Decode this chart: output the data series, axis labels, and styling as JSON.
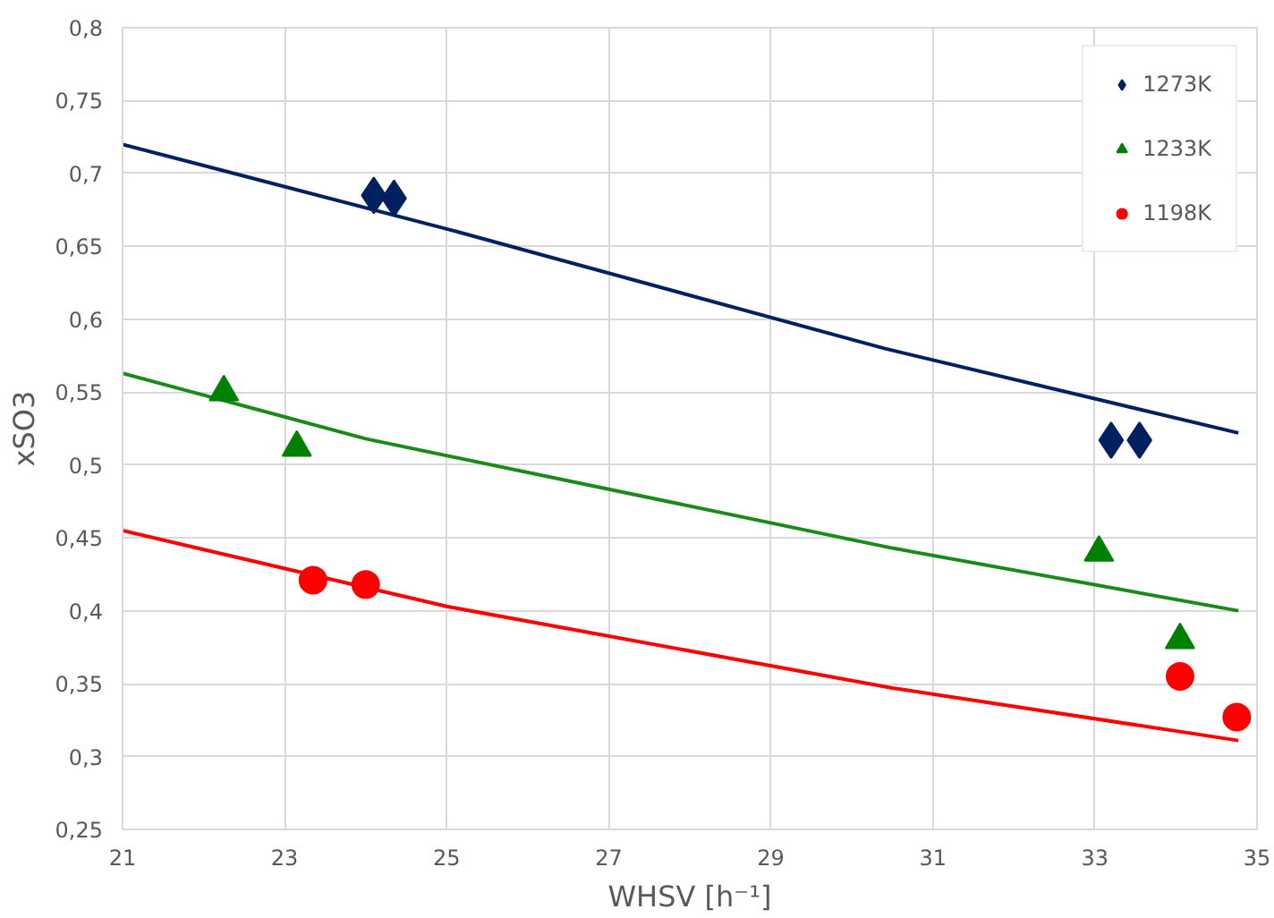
{
  "chart_data": {
    "type": "scatter",
    "xlabel": "WHSV [h⁻¹]",
    "ylabel": "xSO3",
    "xlim": [
      21,
      35
    ],
    "xticks": [
      21,
      23,
      25,
      27,
      29,
      31,
      33,
      35
    ],
    "ylim": [
      0.25,
      0.8
    ],
    "yticks": [
      {
        "value": 0.25,
        "label": "0,25"
      },
      {
        "value": 0.3,
        "label": "0,3"
      },
      {
        "value": 0.35,
        "label": "0,35"
      },
      {
        "value": 0.4,
        "label": "0,4"
      },
      {
        "value": 0.45,
        "label": "0,45"
      },
      {
        "value": 0.5,
        "label": "0,5"
      },
      {
        "value": 0.55,
        "label": "0,55"
      },
      {
        "value": 0.6,
        "label": "0,6"
      },
      {
        "value": 0.65,
        "label": "0,65"
      },
      {
        "value": 0.7,
        "label": "0,7"
      },
      {
        "value": 0.75,
        "label": "0,75"
      },
      {
        "value": 0.8,
        "label": "0,8"
      }
    ],
    "grid": true,
    "legend": "top right",
    "series": [
      {
        "type": "line",
        "color": "#002060",
        "x": [
          21,
          25,
          30.4,
          34.77
        ],
        "values": [
          0.72,
          0.662,
          0.58,
          0.522
        ]
      },
      {
        "type": "line",
        "color": "#1a8a1a",
        "x": [
          21,
          24,
          30.5,
          34.77
        ],
        "values": [
          0.563,
          0.518,
          0.443,
          0.4
        ]
      },
      {
        "type": "line",
        "color": "#ff0000",
        "x": [
          21,
          25,
          30.5,
          34.77
        ],
        "values": [
          0.455,
          0.403,
          0.347,
          0.311
        ]
      },
      {
        "name": "1273K",
        "marker": "diamond",
        "color": "#002060",
        "x": [
          24.1,
          24.35,
          33.2,
          33.55
        ],
        "values": [
          0.685,
          0.683,
          0.517,
          0.517
        ]
      },
      {
        "name": "1233K",
        "marker": "triangle",
        "color": "#008000",
        "x": [
          22.25,
          23.15,
          33.05,
          34.05
        ],
        "values": [
          0.55,
          0.512,
          0.44,
          0.38
        ]
      },
      {
        "name": "1198K",
        "marker": "circle",
        "color": "#ff0000",
        "x": [
          23.35,
          24.0,
          34.05,
          34.75
        ],
        "values": [
          0.421,
          0.418,
          0.355,
          0.327
        ]
      }
    ]
  }
}
